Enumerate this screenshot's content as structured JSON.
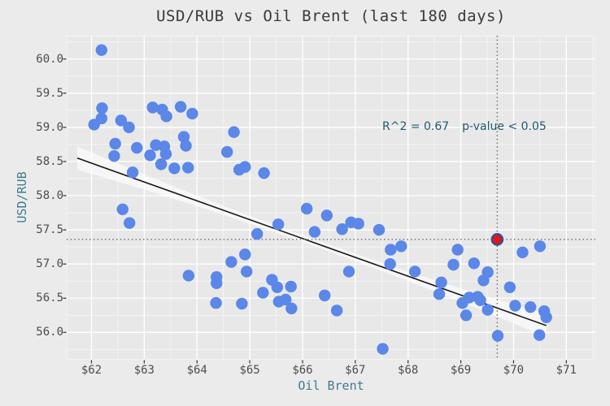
{
  "chart_data": {
    "type": "scatter",
    "title": "USD/RUB vs Oil Brent (last 180 days)",
    "xlabel": "Oil Brent",
    "ylabel": "USD/RUB",
    "xlim": [
      61.53,
      71.55
    ],
    "ylim": [
      55.6,
      60.34
    ],
    "x_ticks": [
      62,
      63,
      64,
      65,
      66,
      67,
      68,
      69,
      70,
      71
    ],
    "x_tick_labels": [
      "$62",
      "$63",
      "$64",
      "$65",
      "$66",
      "$67",
      "$68",
      "$69",
      "$70",
      "$71"
    ],
    "y_ticks": [
      56.0,
      56.5,
      57.0,
      57.5,
      58.0,
      58.5,
      59.0,
      59.5,
      60.0
    ],
    "y_tick_labels": [
      "56.0",
      "56.5",
      "57.0",
      "57.5",
      "58.0",
      "58.5",
      "59.0",
      "59.5",
      "60.0"
    ],
    "grid": "major+minor",
    "legend": "none",
    "annotation": {
      "r_squared": "R^2 = 0.67",
      "p_value": "p-value < 0.05"
    },
    "points": [
      [
        62.19,
        60.13
      ],
      [
        62.2,
        59.28
      ],
      [
        62.19,
        59.13
      ],
      [
        62.05,
        59.04
      ],
      [
        62.56,
        59.1
      ],
      [
        62.71,
        59.0
      ],
      [
        63.16,
        59.29
      ],
      [
        63.34,
        59.26
      ],
      [
        63.42,
        59.16
      ],
      [
        63.69,
        59.3
      ],
      [
        63.91,
        59.2
      ],
      [
        62.45,
        58.76
      ],
      [
        62.43,
        58.58
      ],
      [
        62.86,
        58.7
      ],
      [
        63.22,
        58.74
      ],
      [
        63.38,
        58.72
      ],
      [
        63.41,
        58.61
      ],
      [
        63.11,
        58.59
      ],
      [
        63.32,
        58.46
      ],
      [
        63.75,
        58.86
      ],
      [
        63.79,
        58.73
      ],
      [
        63.57,
        58.4
      ],
      [
        63.83,
        58.41
      ],
      [
        62.78,
        58.34
      ],
      [
        64.7,
        58.93
      ],
      [
        64.57,
        58.64
      ],
      [
        64.8,
        58.38
      ],
      [
        64.91,
        58.42
      ],
      [
        65.27,
        58.33
      ],
      [
        62.59,
        57.8
      ],
      [
        62.72,
        57.6
      ],
      [
        63.84,
        56.83
      ],
      [
        64.37,
        56.81
      ],
      [
        64.37,
        56.72
      ],
      [
        64.65,
        57.03
      ],
      [
        64.36,
        56.43
      ],
      [
        64.85,
        56.42
      ],
      [
        64.91,
        57.14
      ],
      [
        64.94,
        56.89
      ],
      [
        66.08,
        57.81
      ],
      [
        66.46,
        57.71
      ],
      [
        65.54,
        57.58
      ],
      [
        65.14,
        57.44
      ],
      [
        66.23,
        57.47
      ],
      [
        66.75,
        57.51
      ],
      [
        66.92,
        57.61
      ],
      [
        67.06,
        57.59
      ],
      [
        67.45,
        57.5
      ],
      [
        67.67,
        57.21
      ],
      [
        67.87,
        57.26
      ],
      [
        67.66,
        57.0
      ],
      [
        68.13,
        56.89
      ],
      [
        66.88,
        56.89
      ],
      [
        65.42,
        56.77
      ],
      [
        65.52,
        56.66
      ],
      [
        65.25,
        56.58
      ],
      [
        65.78,
        56.67
      ],
      [
        65.55,
        56.45
      ],
      [
        65.68,
        56.48
      ],
      [
        65.79,
        56.35
      ],
      [
        66.42,
        56.54
      ],
      [
        66.65,
        56.32
      ],
      [
        67.52,
        55.76
      ],
      [
        68.94,
        57.21
      ],
      [
        68.86,
        56.99
      ],
      [
        69.25,
        57.01
      ],
      [
        69.51,
        56.88
      ],
      [
        69.43,
        56.76
      ],
      [
        68.63,
        56.73
      ],
      [
        68.59,
        56.56
      ],
      [
        69.03,
        56.43
      ],
      [
        69.16,
        56.51
      ],
      [
        69.32,
        56.52
      ],
      [
        69.37,
        56.47
      ],
      [
        69.1,
        56.25
      ],
      [
        69.51,
        56.33
      ],
      [
        69.93,
        56.66
      ],
      [
        70.17,
        57.17
      ],
      [
        70.5,
        57.26
      ],
      [
        70.03,
        56.39
      ],
      [
        70.32,
        56.37
      ],
      [
        70.58,
        56.31
      ],
      [
        70.62,
        56.22
      ],
      [
        69.7,
        55.95
      ],
      [
        70.49,
        55.96
      ]
    ],
    "highlight_point": {
      "x": 69.69,
      "y": 57.36
    },
    "crosshair": {
      "x": 69.69,
      "y": 57.36
    },
    "trend": {
      "x0": 61.73,
      "y0": 58.55,
      "x1": 70.62,
      "y1": 56.1,
      "ci_halfwidth_center": 0.05,
      "ci_halfwidth_edge": 0.17
    },
    "colors": {
      "figure_bg": "#ebebeb",
      "panel_bg": "#e8e8e8",
      "grid_major": "#ffffff",
      "grid_minor": "#f4f4f4",
      "point_blue": "#5a87e8",
      "highlight_red": "#e91219",
      "highlight_ring": "#33518f",
      "trend_line": "#1a1a1a",
      "ci_band": "rgba(255,255,255,0.6)",
      "crosshair_gray": "#6b6b6b",
      "tick_text": "#4d4d4d",
      "axis_label_teal": "#3e7a8e",
      "annotation_teal": "#1e5a72",
      "title_text": "#3a3a3a"
    }
  }
}
